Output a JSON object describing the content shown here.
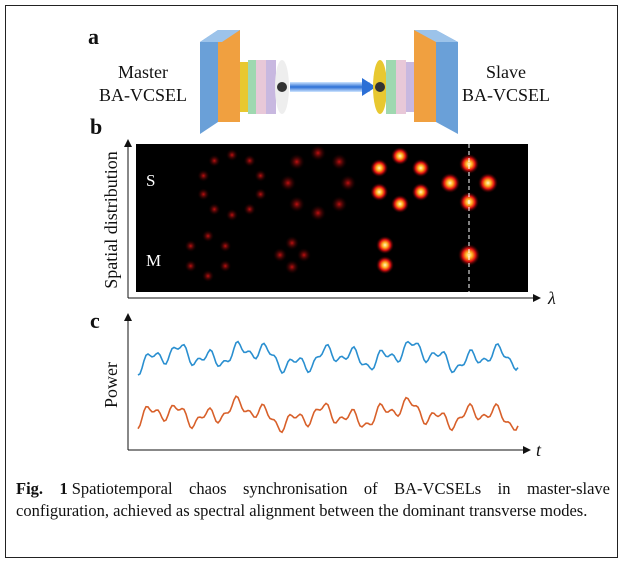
{
  "panels": {
    "a": {
      "label": "a",
      "master": [
        "Master",
        "BA-VCSEL"
      ],
      "slave": [
        "Slave",
        "BA-VCSEL"
      ]
    },
    "b": {
      "label": "b",
      "y_axis": "Spatial distribution",
      "rows": [
        "S",
        "M"
      ],
      "x_axis": "λ"
    },
    "c": {
      "label": "c",
      "y_axis": "Power",
      "x_axis": "t"
    }
  },
  "caption": {
    "label": "Fig. 1",
    "text": "Spatiotemporal chaos synchronisation of BA-VCSELs in master-slave configuration, achieved as spectral alignment between the dominant transverse modes."
  }
}
